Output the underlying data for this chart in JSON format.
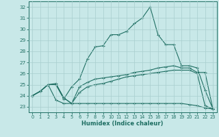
{
  "title": "",
  "xlabel": "Humidex (Indice chaleur)",
  "xlim": [
    -0.5,
    23.5
  ],
  "ylim": [
    22.5,
    32.5
  ],
  "yticks": [
    23,
    24,
    25,
    26,
    27,
    28,
    29,
    30,
    31,
    32
  ],
  "xticks": [
    0,
    1,
    2,
    3,
    4,
    5,
    6,
    7,
    8,
    9,
    10,
    11,
    12,
    13,
    14,
    15,
    16,
    17,
    18,
    19,
    20,
    21,
    22,
    23
  ],
  "bg_color": "#c8e8e8",
  "grid_color": "#a8cece",
  "line_color": "#1e6e62",
  "line1_y": [
    24.0,
    24.4,
    25.0,
    25.0,
    23.7,
    24.8,
    25.5,
    27.3,
    28.4,
    28.5,
    29.5,
    29.5,
    29.8,
    30.5,
    31.0,
    32.0,
    29.5,
    28.6,
    28.6,
    26.7,
    26.7,
    26.5,
    24.5,
    22.8
  ],
  "line2_y": [
    24.0,
    24.4,
    25.0,
    25.1,
    23.8,
    23.3,
    24.8,
    25.2,
    25.5,
    25.6,
    25.7,
    25.8,
    25.9,
    26.1,
    26.2,
    26.3,
    26.5,
    26.6,
    26.7,
    26.5,
    26.5,
    26.1,
    26.1,
    22.8
  ],
  "line3_y": [
    24.0,
    24.4,
    25.0,
    25.0,
    23.8,
    23.3,
    24.3,
    24.8,
    25.0,
    25.1,
    25.3,
    25.5,
    25.7,
    25.8,
    25.9,
    26.0,
    26.1,
    26.2,
    26.3,
    26.3,
    26.3,
    26.0,
    23.1,
    22.8
  ],
  "line4_y": [
    24.0,
    24.4,
    25.0,
    23.6,
    23.3,
    23.3,
    23.3,
    23.3,
    23.3,
    23.3,
    23.3,
    23.3,
    23.3,
    23.3,
    23.3,
    23.3,
    23.3,
    23.3,
    23.3,
    23.3,
    23.2,
    23.1,
    22.9,
    22.8
  ]
}
